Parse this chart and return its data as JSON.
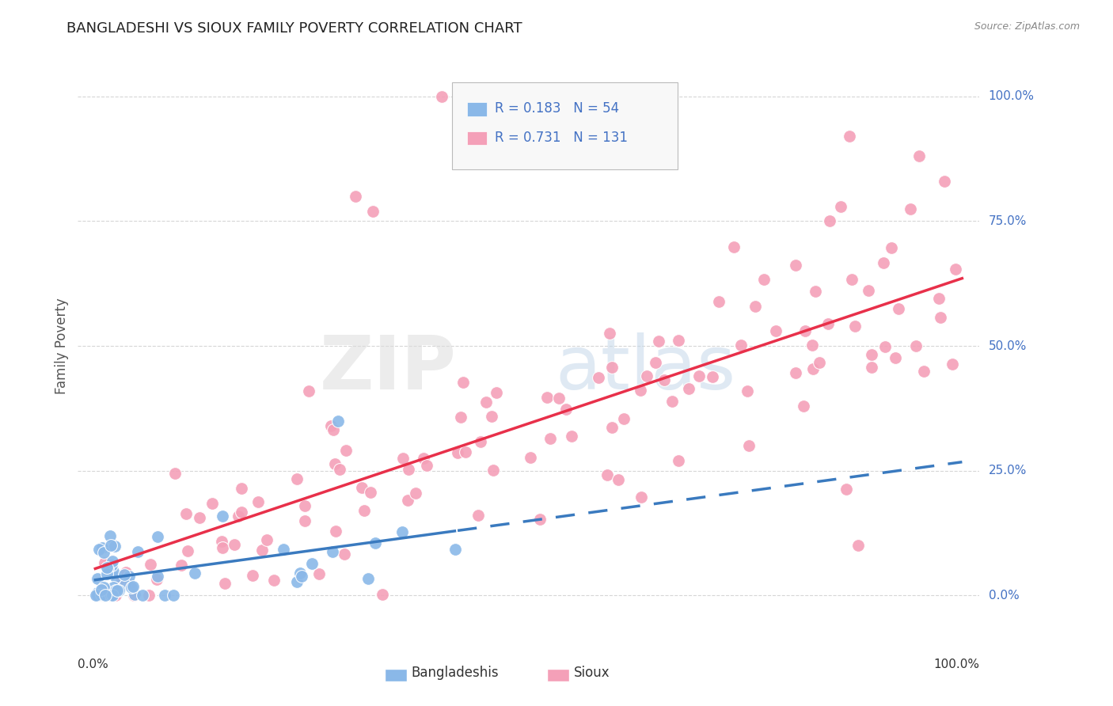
{
  "title": "BANGLADESHI VS SIOUX FAMILY POVERTY CORRELATION CHART",
  "source": "Source: ZipAtlas.com",
  "ylabel": "Family Poverty",
  "ytick_values": [
    0,
    25,
    50,
    75,
    100
  ],
  "ytick_labels": [
    "0.0%",
    "25.0%",
    "50.0%",
    "75.0%",
    "100.0%"
  ],
  "color_bangladeshi": "#8ab8e8",
  "color_sioux": "#f4a0b8",
  "color_trendline_bangladeshi": "#3a7abf",
  "color_trendline_sioux": "#e8304a",
  "color_grid": "#cccccc",
  "color_ytick": "#4472c4",
  "legend_bang_text": "R = 0.183   N = 54",
  "legend_sioux_text": "R = 0.731   N = 131",
  "watermark_zip": "ZIP",
  "watermark_atlas": "atlas",
  "bottom_label_bang": "Bangladeshis",
  "bottom_label_sioux": "Sioux"
}
